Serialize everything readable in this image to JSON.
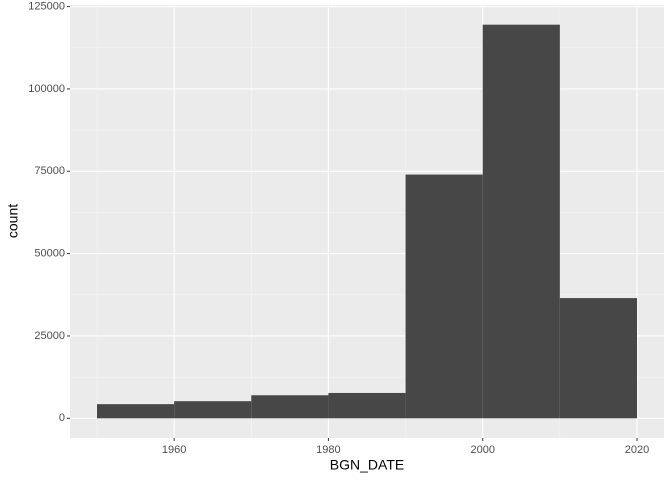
{
  "chart_data": {
    "type": "histogram",
    "x_label": "BGN_DATE",
    "y_label": "count",
    "bins": [
      1950,
      1960,
      1970,
      1980,
      1990,
      2000,
      2010,
      2020
    ],
    "values": [
      4300,
      5200,
      7000,
      7700,
      74000,
      119500,
      36500
    ],
    "color": "#474747",
    "xlim": [
      1946.5,
      2023.5
    ],
    "xticks": [
      1960,
      1980,
      2000,
      2020
    ],
    "ylim": [
      -5975,
      125475
    ],
    "yticks": [
      0,
      25000,
      50000,
      75000,
      100000,
      125000
    ],
    "grid": true
  }
}
